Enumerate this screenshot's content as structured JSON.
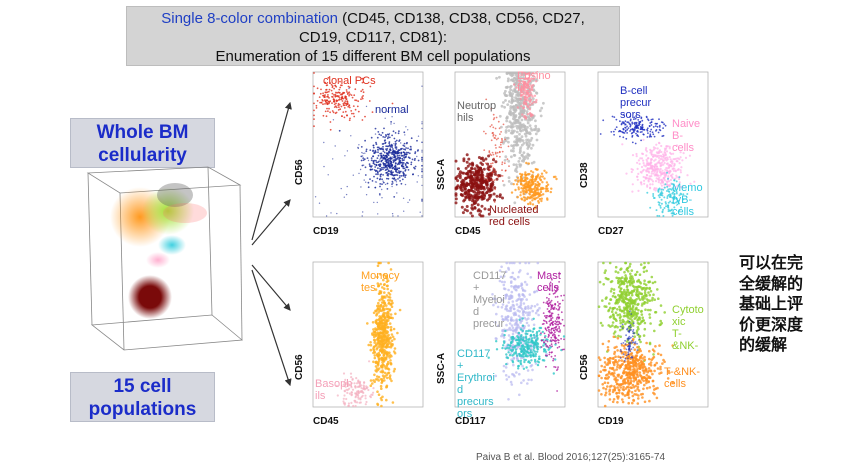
{
  "header": {
    "title_blue": "Single 8-color combination",
    "title_rest_1": " (CD45, CD138, CD38, CD56, CD27,",
    "title_line2": "CD19, CD117, CD81):",
    "title_line3": "Enumeration of 15 different BM cell populations"
  },
  "left": {
    "whole_bm": "Whole BM\ncellularity",
    "populations": "15 cell\npopulations"
  },
  "plots": {
    "p1": {
      "xlabel": "CD19",
      "ylabel": "CD56",
      "label_a": "clonal PCs",
      "label_b": "normal"
    },
    "p2": {
      "xlabel": "CD45",
      "ylabel": "SSC-A",
      "label_a": "Eosino\nfils",
      "label_b": "Neutrop\nhils",
      "label_c": "Nucleated\nred cells"
    },
    "p3": {
      "xlabel": "CD27",
      "ylabel": "CD38",
      "label_a": "B-cell\nprecur\nsors",
      "label_b": "Naive\nB-\ncells",
      "label_c": "Memo\nryB-\ncells"
    },
    "p4": {
      "xlabel": "CD45",
      "ylabel": "CD56",
      "label_a": "Monocy\ntes",
      "label_b": "Basoph\nils"
    },
    "p5": {
      "xlabel": "CD117",
      "ylabel": "SSC-A",
      "label_a": "CD117\n+\nMyeloi\nd\nprecur",
      "label_b": "Mast\ncells",
      "label_c": "CD117\n+\nErythroi\nd\nprecurs\nors"
    },
    "p6": {
      "xlabel": "CD19",
      "ylabel": "CD56",
      "label_a": "Cytoto\nxic\nT-\n&NK-",
      "label_b": "T-&NK-\ncells"
    }
  },
  "side_note": "可以在完\n全缓解的\n基础上评\n价更深度\n的缓解",
  "citation": "Paiva B et al. Blood 2016;127(25):3165-74",
  "colors": {
    "title_blue": "#1f3fc4",
    "box_blue_text": "#1b2cc9",
    "clonal_pc": "#e0301e",
    "normal": "#1a2b9a",
    "neutrophil_grey": "#bdbdbd",
    "eosino_pink": "#ff8fa0",
    "nucleated_red": "#8b1010",
    "orange": "#ff9a20",
    "lymph_blue": "#2030c0",
    "naive_pink": "#ffb0e8",
    "memory_cyan": "#40d0e0",
    "mono_yellow": "#ffb020",
    "baso_pink": "#f4b0c0",
    "myeloid_lav": "#b8b8f0",
    "mast_magenta": "#b020a0",
    "ery_cyan": "#30c8c8",
    "cyto_green": "#90d030",
    "tnk_orange": "#ff9020"
  }
}
